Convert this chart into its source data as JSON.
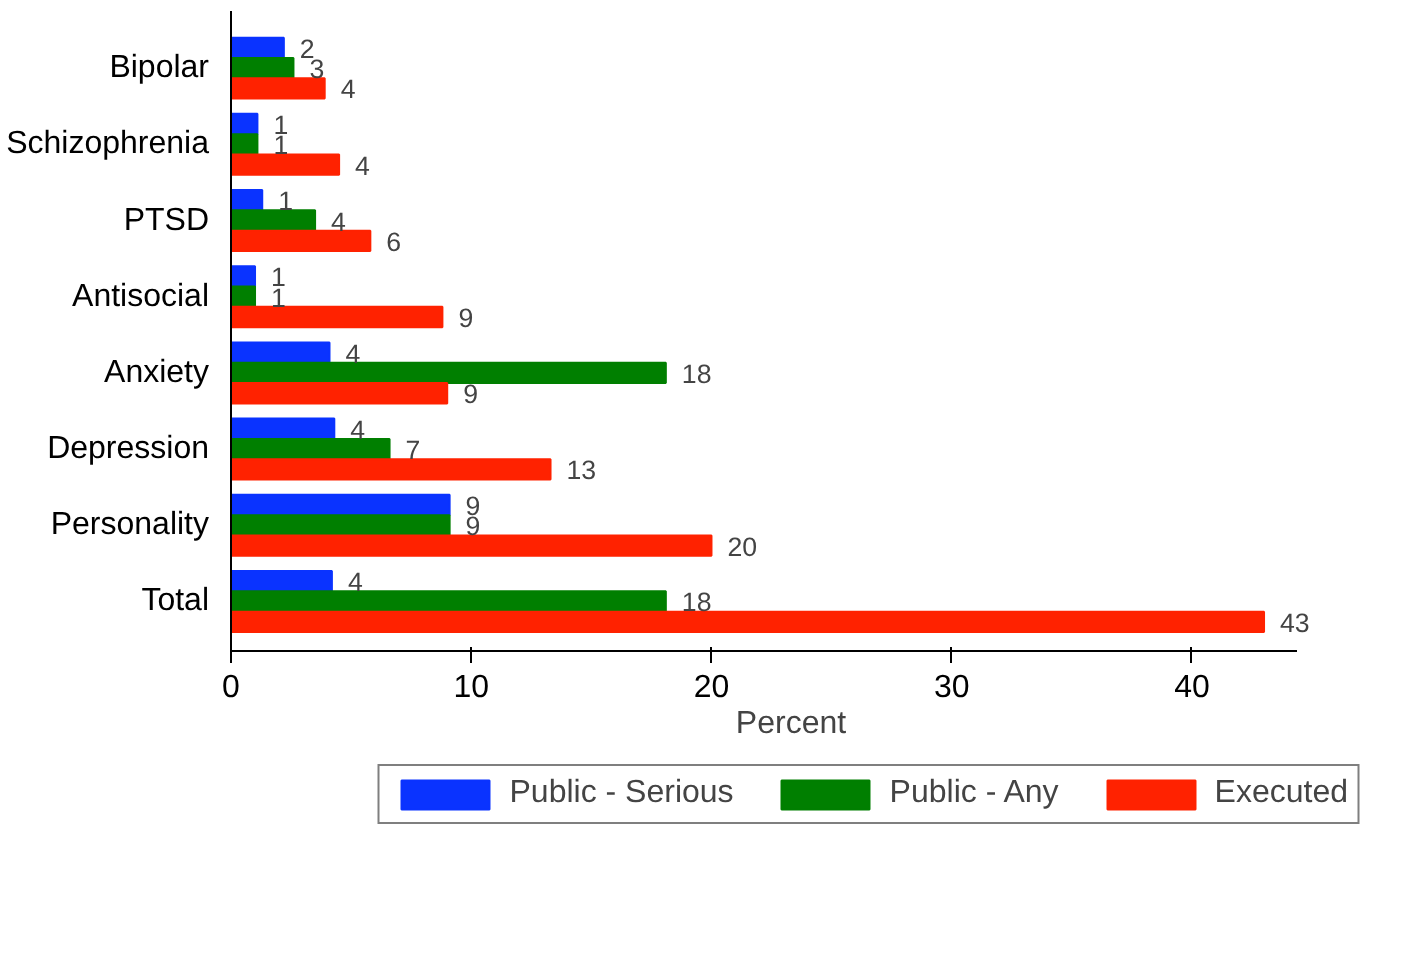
{
  "chart_data": {
    "type": "bar",
    "orientation": "horizontal",
    "xlabel": "Percent",
    "categories": [
      "Bipolar",
      "Schizophrenia",
      "PTSD",
      "Antisocial",
      "Anxiety",
      "Depression",
      "Personality",
      "Total"
    ],
    "series": [
      {
        "name": "Public - Serious",
        "color": "#0a33ff",
        "values": [
          2.2,
          1.1,
          1.3,
          1.0,
          4.1,
          4.3,
          9.1,
          4.2
        ],
        "value_labels": [
          "2",
          "1",
          "1",
          "1",
          "4",
          "4",
          "9",
          "4"
        ]
      },
      {
        "name": "Public - Any",
        "color": "#007f00",
        "values": [
          2.6,
          1.1,
          3.5,
          1.0,
          18.1,
          6.6,
          9.1,
          18.1
        ],
        "value_labels": [
          "3",
          "1",
          "4",
          "1",
          "18",
          "7",
          "9",
          "18"
        ]
      },
      {
        "name": "Executed",
        "color": "#ff2200",
        "values": [
          3.9,
          4.5,
          5.8,
          8.8,
          9.0,
          13.3,
          20.0,
          43.0
        ],
        "value_labels": [
          "4",
          "4",
          "6",
          "9",
          "9",
          "13",
          "20",
          "43"
        ]
      }
    ],
    "xlim": [
      0,
      44.4
    ],
    "xticks": [
      0,
      10,
      20,
      30,
      40
    ],
    "grid": false,
    "legend": "bottom"
  }
}
